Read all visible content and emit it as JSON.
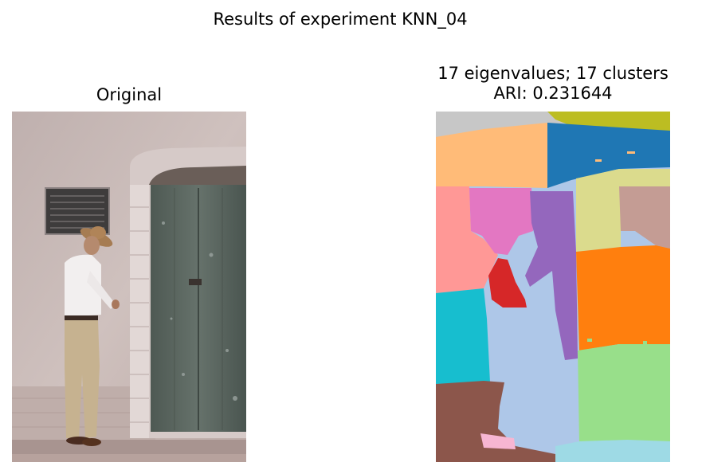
{
  "figure": {
    "suptitle": "Results of experiment KNN_04"
  },
  "left_axes": {
    "title": "Original"
  },
  "right_axes": {
    "title_line1": "17 eigenvalues; 17 clusters",
    "title_line2": "ARI: 0.231644",
    "eigenvalues": 17,
    "clusters": 17,
    "ari": 0.231644
  },
  "colors": {
    "wall": "#c9bab8",
    "door": "#5a6660",
    "tab10_blue": "#1f77b4",
    "tab10_orange": "#ff7f0e",
    "tab10_green_light": "#98df8a",
    "tab10_red": "#d62728",
    "tab10_purple": "#9467bd",
    "tab10_brown": "#8c564b",
    "tab10_pink": "#e377c2",
    "tab10_gray": "#c7c7c7",
    "tab10_olive": "#bcbd22",
    "tab10_cyan": "#17becf",
    "light_blue": "#aec7e8",
    "light_orange": "#ffbb78",
    "light_red": "#ff9896",
    "light_olive": "#dbdb8d",
    "light_brown": "#c49c94",
    "light_pink": "#f7b6d2",
    "light_cyan": "#9edae5"
  }
}
